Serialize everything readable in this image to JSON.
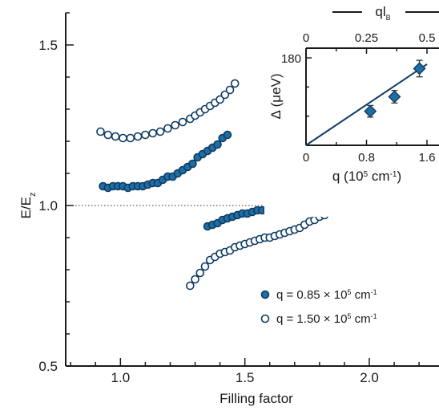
{
  "chart_data": [
    {
      "type": "scatter",
      "xlabel": "Filling factor",
      "ylabel": "E/E",
      "ylabel_subscript": "z",
      "xlim": [
        0.78,
        2.28
      ],
      "ylim": [
        0.5,
        1.6
      ],
      "xticks": [
        1.0,
        1.5,
        2.0
      ],
      "xtick_labels": [
        "1.0",
        "1.5",
        "2.0"
      ],
      "yticks": [
        0.5,
        1.0,
        1.5
      ],
      "ytick_labels": [
        "0.5",
        "1.0",
        "1.5"
      ],
      "reference_line_y": 1.0,
      "legend_position": "bottom-right",
      "colors": {
        "filled": "#1f6ea3",
        "edge": "#0e3b63",
        "open_fill": "#ffffff"
      },
      "legend": [
        {
          "label": "q = 0.85 × 10",
          "sup": "5",
          "unit": " cm",
          "unit_sup": "-1",
          "marker": "filled"
        },
        {
          "label": "q = 1.50 × 10",
          "sup": "5",
          "unit": " cm",
          "unit_sup": "-1",
          "marker": "open"
        }
      ],
      "series": [
        {
          "marker": "filled",
          "segments": [
            {
              "x": [
                0.93,
                0.95,
                0.97,
                0.99,
                1.01,
                1.03,
                1.05,
                1.07,
                1.09,
                1.11,
                1.13,
                1.15,
                1.17,
                1.19,
                1.21,
                1.23,
                1.25,
                1.27,
                1.29,
                1.31,
                1.33,
                1.35,
                1.37,
                1.39,
                1.41,
                1.43
              ],
              "y": [
                1.06,
                1.055,
                1.06,
                1.06,
                1.06,
                1.055,
                1.06,
                1.06,
                1.06,
                1.065,
                1.07,
                1.07,
                1.08,
                1.09,
                1.09,
                1.1,
                1.11,
                1.12,
                1.13,
                1.15,
                1.16,
                1.17,
                1.18,
                1.19,
                1.21,
                1.22
              ]
            },
            {
              "x": [
                1.35,
                1.37,
                1.39,
                1.41,
                1.43,
                1.45,
                1.47,
                1.49,
                1.51,
                1.53,
                1.55,
                1.57,
                1.59,
                1.61,
                1.63,
                1.65,
                1.67,
                1.69,
                1.71,
                1.73,
                1.75,
                1.77,
                1.79,
                1.81
              ],
              "y": [
                0.935,
                0.94,
                0.945,
                0.955,
                0.96,
                0.965,
                0.97,
                0.975,
                0.975,
                0.98,
                0.985,
                0.985,
                0.985,
                0.99,
                0.99,
                0.99,
                0.995,
                0.995,
                0.99,
                0.995,
                0.995,
                1.0,
                1.0,
                1.0
              ]
            }
          ]
        },
        {
          "marker": "open",
          "segments": [
            {
              "x": [
                0.92,
                0.95,
                0.98,
                1.01,
                1.04,
                1.07,
                1.1,
                1.13,
                1.16,
                1.19,
                1.22,
                1.25,
                1.28,
                1.3,
                1.32,
                1.34,
                1.36,
                1.38,
                1.4,
                1.42,
                1.44,
                1.46
              ],
              "y": [
                1.23,
                1.22,
                1.215,
                1.21,
                1.21,
                1.215,
                1.22,
                1.225,
                1.23,
                1.24,
                1.25,
                1.26,
                1.27,
                1.28,
                1.29,
                1.3,
                1.31,
                1.32,
                1.33,
                1.345,
                1.36,
                1.38
              ]
            },
            {
              "x": [
                1.28,
                1.3,
                1.32,
                1.34,
                1.36,
                1.38,
                1.4,
                1.42,
                1.44,
                1.46,
                1.48,
                1.5,
                1.52,
                1.54,
                1.56,
                1.58,
                1.6,
                1.62,
                1.64,
                1.66,
                1.68,
                1.7,
                1.72,
                1.74,
                1.76,
                1.78,
                1.8,
                1.82
              ],
              "y": [
                0.75,
                0.77,
                0.79,
                0.81,
                0.83,
                0.84,
                0.85,
                0.855,
                0.86,
                0.87,
                0.875,
                0.88,
                0.885,
                0.89,
                0.895,
                0.9,
                0.9,
                0.905,
                0.91,
                0.915,
                0.92,
                0.925,
                0.93,
                0.94,
                0.95,
                0.955,
                0.965,
                0.97
              ]
            }
          ]
        }
      ]
    },
    {
      "type": "scatter",
      "xlabel": "q (10",
      "xlabel_sup": "5",
      "xlabel_end": " cm",
      "xlabel_end_sup": "-1",
      "xlabel_close": ")",
      "ylabel": "Δ (μeV)",
      "top_axis_label": "ql",
      "top_axis_label_sub": "B",
      "xlim": [
        0,
        1.6
      ],
      "ylim": [
        0,
        200
      ],
      "xticks": [
        0,
        0.8,
        1.6
      ],
      "xtick_labels": [
        "0",
        "0.8",
        "1.6"
      ],
      "top_xticks": [
        0,
        0.25,
        0.5
      ],
      "top_xtick_labels": [
        "0",
        "0.25",
        "0.5"
      ],
      "yticks": [
        180
      ],
      "ytick_labels": [
        "180"
      ],
      "points": [
        {
          "x": 0.85,
          "y": 70,
          "err": 12
        },
        {
          "x": 1.17,
          "y": 100,
          "err": 13
        },
        {
          "x": 1.5,
          "y": 158,
          "err": 17
        }
      ],
      "fit_line": {
        "x": [
          0,
          1.6
        ],
        "y": [
          0,
          167
        ]
      },
      "colors": {
        "marker": "#1f6ea3",
        "edge": "#0e3b63",
        "line": "#0e3b63",
        "error": "#333333"
      }
    }
  ]
}
